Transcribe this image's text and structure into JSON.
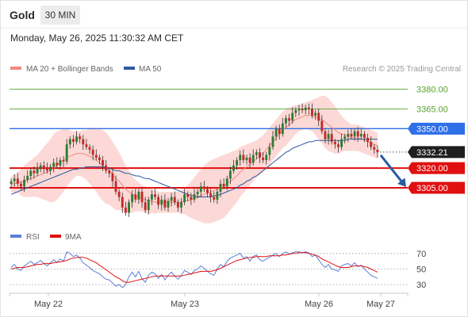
{
  "header": {
    "title": "Gold",
    "timeframe": "30 MIN",
    "datetime": "Monday, May 26, 2025 11:30:32 AM CET"
  },
  "legend": {
    "items": [
      {
        "label": "MA 20 + Bollinger Bands",
        "color": "#f08a80"
      },
      {
        "label": "MA 50",
        "color": "#2c5aa0"
      }
    ],
    "credit": "Research © 2025 Trading Central"
  },
  "rsi_legend": {
    "items": [
      {
        "label": "RSI",
        "color": "#5b7fd6"
      },
      {
        "label": "9MA",
        "color": "#e01010"
      }
    ]
  },
  "chart_data": [
    {
      "type": "candlestick",
      "title": "Gold",
      "timeframe": "30 MIN",
      "ylim": [
        3273,
        3390
      ],
      "x_tick_labels": [
        "May 22",
        "May 23",
        "May 26",
        "May 27"
      ],
      "last_price": 3332.21,
      "levels": [
        {
          "value": 3380.0,
          "label": "3380.00",
          "kind": "target",
          "color": "#5aa02c"
        },
        {
          "value": 3365.0,
          "label": "3365.00",
          "kind": "target",
          "color": "#5aa02c"
        },
        {
          "value": 3350.0,
          "label": "3350.00",
          "kind": "pivot",
          "color": "#2f6fe8"
        },
        {
          "value": 3320.0,
          "label": "3320.00",
          "kind": "support",
          "color": "#e01010"
        },
        {
          "value": 3305.0,
          "label": "3305.00",
          "kind": "support",
          "color": "#e01010"
        }
      ],
      "last_price_label": "3332.21",
      "close_series": [
        3310,
        3312,
        3308,
        3306,
        3311,
        3314,
        3318,
        3316,
        3320,
        3322,
        3320,
        3318,
        3321,
        3324,
        3322,
        3326,
        3325,
        3338,
        3342,
        3340,
        3344,
        3342,
        3338,
        3336,
        3334,
        3330,
        3328,
        3326,
        3322,
        3318,
        3316,
        3310,
        3302,
        3298,
        3290,
        3286,
        3294,
        3300,
        3296,
        3302,
        3294,
        3288,
        3296,
        3300,
        3298,
        3292,
        3296,
        3290,
        3295,
        3298,
        3294,
        3290,
        3294,
        3300,
        3298,
        3296,
        3300,
        3302,
        3306,
        3304,
        3301,
        3298,
        3296,
        3302,
        3308,
        3306,
        3312,
        3318,
        3322,
        3326,
        3330,
        3326,
        3328,
        3324,
        3330,
        3332,
        3328,
        3326,
        3330,
        3336,
        3344,
        3350,
        3346,
        3354,
        3358,
        3356,
        3362,
        3364,
        3365,
        3364,
        3366,
        3365,
        3360,
        3362,
        3356,
        3348,
        3342,
        3346,
        3340,
        3338,
        3336,
        3342,
        3344,
        3346,
        3344,
        3348,
        3344,
        3346,
        3343,
        3340,
        3336,
        3334,
        3332
      ],
      "ma20_series": [
        3308,
        3308,
        3309,
        3309,
        3310,
        3311,
        3312,
        3313,
        3314,
        3315,
        3316,
        3317,
        3318,
        3320,
        3322,
        3324,
        3326,
        3328,
        3329,
        3330,
        3331,
        3331,
        3331,
        3330,
        3329,
        3328,
        3326,
        3324,
        3322,
        3320,
        3318,
        3315,
        3312,
        3310,
        3307,
        3304,
        3302,
        3300,
        3299,
        3298,
        3297,
        3296,
        3295,
        3295,
        3294,
        3294,
        3294,
        3294,
        3294,
        3294,
        3294,
        3294,
        3294,
        3295,
        3295,
        3296,
        3297,
        3298,
        3299,
        3300,
        3301,
        3302,
        3303,
        3304,
        3305,
        3306,
        3308,
        3310,
        3312,
        3314,
        3317,
        3319,
        3321,
        3323,
        3325,
        3327,
        3329,
        3331,
        3334,
        3337,
        3340,
        3343,
        3346,
        3349,
        3351,
        3353,
        3355,
        3357,
        3358,
        3359,
        3360,
        3360,
        3360,
        3359,
        3358,
        3357,
        3355,
        3353,
        3351,
        3349,
        3347,
        3346,
        3345,
        3344,
        3343,
        3343,
        3343,
        3342,
        3341,
        3340,
        3339,
        3338,
        3337
      ],
      "ma50_series": [
        3300,
        3301,
        3302,
        3303,
        3304,
        3305,
        3306,
        3307,
        3308,
        3309,
        3310,
        3311,
        3312,
        3313,
        3314,
        3315,
        3316,
        3317,
        3318,
        3319,
        3319,
        3320,
        3320,
        3321,
        3321,
        3321,
        3321,
        3321,
        3321,
        3320,
        3320,
        3319,
        3318,
        3318,
        3317,
        3316,
        3316,
        3315,
        3314,
        3314,
        3313,
        3312,
        3312,
        3311,
        3310,
        3309,
        3308,
        3307,
        3306,
        3305,
        3304,
        3303,
        3302,
        3301,
        3300,
        3299,
        3299,
        3298,
        3298,
        3298,
        3298,
        3298,
        3299,
        3299,
        3300,
        3301,
        3302,
        3303,
        3304,
        3305,
        3307,
        3308,
        3310,
        3311,
        3313,
        3314,
        3316,
        3318,
        3320,
        3322,
        3324,
        3326,
        3328,
        3330,
        3332,
        3333,
        3335,
        3336,
        3337,
        3338,
        3339,
        3340,
        3340,
        3341,
        3341,
        3341,
        3341,
        3341,
        3341,
        3341,
        3341,
        3341,
        3341,
        3342,
        3342,
        3342,
        3342,
        3342,
        3342,
        3342,
        3342,
        3342,
        3342
      ],
      "band_width_series": [
        6,
        7,
        8,
        10,
        12,
        13,
        14,
        15,
        16,
        18,
        20,
        22,
        24,
        26,
        26,
        25,
        24,
        22,
        20,
        18,
        17,
        17,
        18,
        19,
        21,
        23,
        24,
        26,
        27,
        27,
        26,
        25,
        24,
        22,
        20,
        18,
        16,
        14,
        12,
        11,
        10,
        10,
        10,
        9,
        9,
        8,
        8,
        8,
        8,
        8,
        8,
        8,
        9,
        10,
        12,
        14,
        16,
        18,
        20,
        22,
        23,
        24,
        24,
        24,
        24,
        24,
        23,
        22,
        21,
        20,
        19,
        18,
        17,
        16,
        15,
        14,
        14,
        14,
        14,
        14,
        14,
        14,
        14,
        14,
        14,
        13,
        12,
        11,
        10,
        10,
        10,
        11,
        12,
        14,
        16,
        18,
        20,
        20,
        19,
        18,
        16,
        14,
        12,
        11,
        10,
        10,
        10,
        10,
        10,
        10,
        10,
        10,
        10
      ],
      "forecast": {
        "from": 3332.21,
        "to": 3305.0
      }
    },
    {
      "type": "line",
      "title": "RSI",
      "ylim": [
        22,
        82
      ],
      "y_tick_labels": [
        "70",
        "50",
        "30"
      ],
      "reference_levels": [
        70,
        50,
        30
      ],
      "series": [
        {
          "name": "RSI",
          "values": [
            52,
            56,
            50,
            48,
            54,
            57,
            60,
            56,
            58,
            61,
            57,
            54,
            58,
            62,
            58,
            63,
            60,
            72,
            70,
            66,
            68,
            64,
            58,
            55,
            52,
            48,
            46,
            44,
            40,
            37,
            36,
            32,
            28,
            30,
            26,
            30,
            40,
            46,
            40,
            47,
            38,
            33,
            42,
            46,
            44,
            38,
            43,
            36,
            42,
            46,
            41,
            37,
            42,
            48,
            46,
            43,
            48,
            50,
            54,
            51,
            47,
            44,
            42,
            50,
            56,
            53,
            60,
            64,
            66,
            68,
            70,
            64,
            66,
            60,
            66,
            68,
            62,
            60,
            63,
            65,
            68,
            70,
            66,
            70,
            72,
            69,
            71,
            72,
            72,
            71,
            72,
            71,
            66,
            68,
            62,
            56,
            52,
            56,
            50,
            49,
            47,
            54,
            56,
            57,
            54,
            58,
            53,
            55,
            50,
            46,
            42,
            40,
            38
          ]
        },
        {
          "name": "9MA",
          "values": [
            50,
            51,
            52,
            52,
            52,
            53,
            54,
            55,
            56,
            56,
            57,
            57,
            57,
            58,
            59,
            59,
            60,
            61,
            63,
            64,
            65,
            65,
            65,
            64,
            62,
            60,
            58,
            55,
            52,
            49,
            46,
            43,
            40,
            38,
            35,
            33,
            33,
            34,
            35,
            36,
            37,
            38,
            39,
            40,
            41,
            41,
            41,
            41,
            41,
            41,
            41,
            41,
            41,
            42,
            43,
            44,
            45,
            46,
            47,
            47,
            47,
            47,
            48,
            49,
            51,
            53,
            55,
            57,
            59,
            61,
            62,
            63,
            64,
            65,
            65,
            66,
            66,
            66,
            66,
            67,
            67,
            67,
            67,
            68,
            68,
            69,
            70,
            70,
            71,
            71,
            71,
            70,
            69,
            68,
            66,
            63,
            61,
            59,
            57,
            55,
            53,
            52,
            52,
            52,
            53,
            54,
            54,
            54,
            53,
            52,
            50,
            48,
            46
          ]
        }
      ]
    }
  ]
}
